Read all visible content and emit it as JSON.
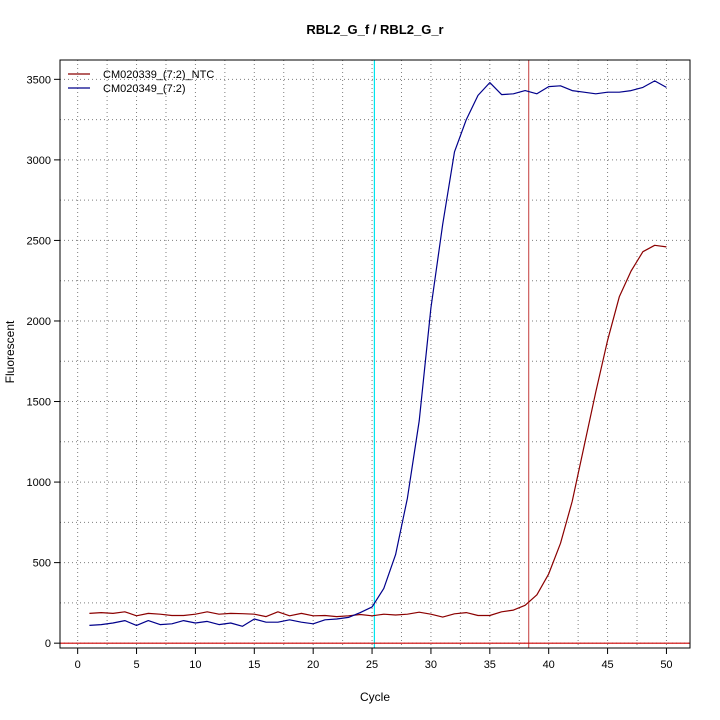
{
  "chart_data": {
    "type": "line",
    "title": "RBL2_G_f / RBL2_G_r",
    "xlabel": "Cycle",
    "ylabel": "Fluorescent",
    "xlim": [
      -1.5,
      52
    ],
    "ylim": [
      -30,
      3620
    ],
    "x_ticks": [
      0,
      5,
      10,
      15,
      20,
      25,
      30,
      35,
      40,
      45,
      50
    ],
    "y_ticks": [
      0,
      500,
      1000,
      1500,
      2000,
      2500,
      3000,
      3500
    ],
    "grid": true,
    "legend_position": "top-left",
    "x": [
      1,
      2,
      3,
      4,
      5,
      6,
      7,
      8,
      9,
      10,
      11,
      12,
      13,
      14,
      15,
      16,
      17,
      18,
      19,
      20,
      21,
      22,
      23,
      24,
      25,
      26,
      27,
      28,
      29,
      30,
      31,
      32,
      33,
      34,
      35,
      36,
      37,
      38,
      39,
      40,
      41,
      42,
      43,
      44,
      45,
      46,
      47,
      48,
      49,
      50
    ],
    "series": [
      {
        "name": "CM020339_(7:2)_NTC",
        "color": "#8b0000",
        "values": [
          185,
          190,
          185,
          195,
          170,
          185,
          180,
          172,
          172,
          180,
          195,
          180,
          185,
          183,
          180,
          165,
          195,
          170,
          185,
          170,
          172,
          165,
          170,
          178,
          170,
          180,
          175,
          180,
          192,
          180,
          162,
          182,
          190,
          172,
          172,
          195,
          205,
          235,
          300,
          430,
          620,
          880,
          1220,
          1560,
          1880,
          2150,
          2310,
          2430,
          2470,
          2460
        ]
      },
      {
        "name": "CM020349_(7:2)",
        "color": "#00008b",
        "values": [
          110,
          115,
          125,
          140,
          110,
          140,
          115,
          120,
          140,
          125,
          135,
          115,
          125,
          105,
          150,
          130,
          130,
          145,
          130,
          120,
          145,
          150,
          160,
          190,
          225,
          340,
          550,
          900,
          1380,
          2080,
          2600,
          3050,
          3250,
          3400,
          3480,
          3405,
          3410,
          3430,
          3410,
          3455,
          3460,
          3430,
          3420,
          3410,
          3420,
          3420,
          3430,
          3450,
          3490,
          3450
        ]
      }
    ],
    "reference_lines": [
      {
        "orientation": "vertical",
        "x": 25.2,
        "color": "#00e5ee"
      },
      {
        "orientation": "vertical",
        "x": 38.3,
        "color": "#cd5c5c"
      },
      {
        "orientation": "horizontal",
        "y": 0,
        "color": "#cd0000"
      }
    ]
  }
}
